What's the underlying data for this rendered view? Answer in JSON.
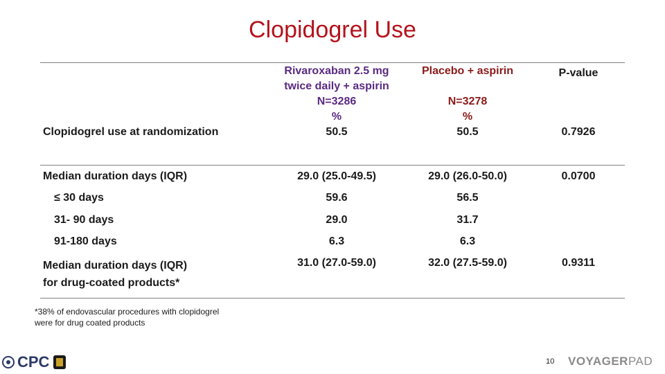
{
  "title": "Clopidogrel Use",
  "header": {
    "col1": [
      "Rivaroxaban 2.5 mg",
      "twice daily + aspirin",
      "N=3286",
      "%"
    ],
    "col2": [
      "Placebo + aspirin",
      "",
      "N=3278",
      "%"
    ],
    "col3": "P-value"
  },
  "rows": [
    {
      "label": "Clopidogrel use at randomization",
      "v1": "50.5",
      "v2": "50.5",
      "p": "0.7926"
    },
    {
      "label": "Median duration days (IQR)",
      "v1": "29.0 (25.0-49.5)",
      "v2": "29.0 (26.0-50.0)",
      "p": "0.0700"
    },
    {
      "label": "≤ 30 days",
      "v1": "59.6",
      "v2": "56.5",
      "p": ""
    },
    {
      "label": "31- 90 days",
      "v1": "29.0",
      "v2": "31.7",
      "p": ""
    },
    {
      "label": "91-180 days",
      "v1": "6.3",
      "v2": "6.3",
      "p": ""
    },
    {
      "label": [
        "Median duration days (IQR)",
        "for drug-coated products*"
      ],
      "v1": "31.0 (27.0-59.0)",
      "v2": "32.0 (27.5-59.0)",
      "p": "0.9311"
    }
  ],
  "footnote": [
    "*38% of endovascular procedures with clopidogrel",
    "were for drug coated products"
  ],
  "page_number": "10",
  "logos": {
    "left": "CPC",
    "right_a": "VOYAGER",
    "right_b": "PAD"
  },
  "colors": {
    "title": "#b5121b",
    "header_col1": "#5a2a82",
    "header_col2": "#8b1a1a",
    "rule": "#808080"
  }
}
